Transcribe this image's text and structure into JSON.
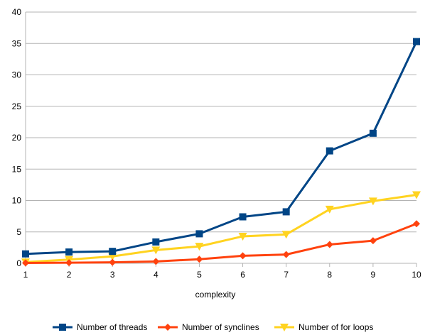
{
  "chart_data": {
    "type": "line",
    "title": "",
    "xlabel": "complexity",
    "ylabel": "",
    "x": [
      1,
      2,
      3,
      4,
      5,
      6,
      7,
      8,
      9,
      10
    ],
    "ylim": [
      0,
      40
    ],
    "yticks": [
      0,
      5,
      10,
      15,
      20,
      25,
      30,
      35,
      40
    ],
    "grid": "horizontal",
    "legend": "bottom",
    "series": [
      {
        "name": "Number of threads",
        "color": "#004586",
        "marker": "square",
        "values": [
          1.5,
          1.8,
          1.9,
          3.4,
          4.7,
          7.4,
          8.2,
          17.9,
          20.7,
          35.3
        ]
      },
      {
        "name": "Number of synclines",
        "color": "#ff420e",
        "marker": "diamond",
        "values": [
          0.05,
          0.1,
          0.15,
          0.3,
          0.65,
          1.2,
          1.4,
          3.0,
          3.6,
          6.3
        ]
      },
      {
        "name": "Number of for loops",
        "color": "#ffd320",
        "marker": "triangle-down",
        "values": [
          0.2,
          0.6,
          1.1,
          2.1,
          2.7,
          4.3,
          4.6,
          8.6,
          9.9,
          10.9
        ]
      }
    ]
  }
}
